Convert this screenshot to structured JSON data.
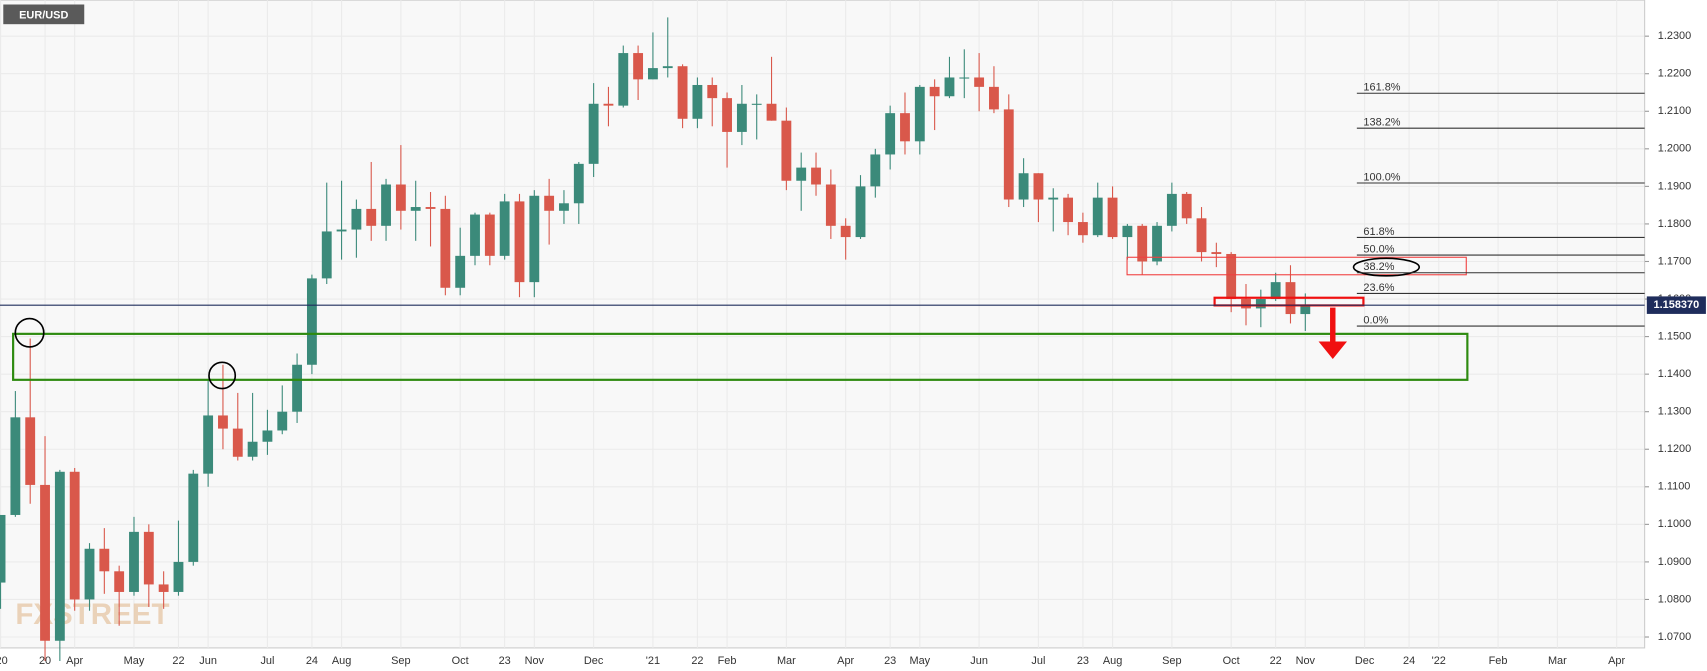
{
  "chart_data": {
    "type": "candlestick",
    "title": "EUR/USD",
    "watermark": "FXSTREET",
    "up_color": "#3b8a7a",
    "down_color": "#d9584b",
    "grid": true,
    "categories": [
      "'20",
      null,
      null,
      "20",
      null,
      "Apr",
      null,
      null,
      null,
      "May",
      null,
      null,
      "22",
      null,
      "Jun",
      null,
      null,
      null,
      "Jul",
      null,
      null,
      "24",
      null,
      "Aug",
      null,
      null,
      null,
      "Sep",
      null,
      null,
      null,
      "Oct",
      null,
      null,
      "23",
      null,
      "Nov",
      null,
      null,
      null,
      "Dec",
      null,
      null,
      null,
      "'21",
      null,
      null,
      "22",
      null,
      "Feb",
      null,
      null,
      null,
      "Mar",
      null,
      null,
      null,
      "Apr",
      null,
      null,
      "23",
      null,
      "May",
      null,
      null,
      null,
      "Jun",
      null,
      null,
      null,
      "Jul",
      null,
      null,
      "23",
      null,
      "Aug",
      null,
      null,
      null,
      "Sep",
      null,
      null,
      null,
      "Oct",
      null,
      null,
      "22",
      null,
      "Nov",
      null,
      null,
      null,
      "Dec",
      null,
      null,
      "24",
      null,
      "'22",
      null,
      null,
      null,
      "Feb",
      null,
      null,
      null,
      "Mar",
      null,
      null,
      null,
      "Apr",
      null
    ],
    "open": [
      1.0845,
      1.1025,
      1.1285,
      1.1105,
      1.069,
      1.114,
      1.08,
      1.0935,
      1.0875,
      1.082,
      1.098,
      1.084,
      1.082,
      1.09,
      1.1135,
      1.129,
      1.1255,
      1.118,
      1.122,
      1.125,
      1.13,
      1.1425,
      1.1655,
      1.178,
      1.1785,
      1.184,
      1.1795,
      1.1905,
      1.1835,
      1.1845,
      1.184,
      1.163,
      1.1715,
      1.1825,
      1.1715,
      1.186,
      1.1645,
      1.1875,
      1.1835,
      1.1855,
      1.196,
      1.212,
      1.2115,
      1.2255,
      1.2185,
      1.2215,
      1.222,
      1.208,
      1.217,
      1.2135,
      1.2045,
      1.212,
      1.212,
      1.2075,
      1.1915,
      1.195,
      1.1905,
      1.1795,
      1.1765,
      1.19,
      1.1985,
      1.2095,
      1.202,
      1.2165,
      1.214,
      1.219,
      1.219,
      1.2165,
      1.2105,
      1.1865,
      1.1935,
      1.1865,
      1.187,
      1.1805,
      1.177,
      1.187,
      1.1765,
      1.1795,
      1.17,
      1.1795,
      1.188,
      1.1815,
      1.1725,
      1.172,
      1.16,
      1.1575,
      1.16,
      1.1645,
      1.156,
      null,
      null,
      null,
      null,
      null,
      null,
      null,
      null,
      null,
      null,
      null,
      null,
      null,
      null,
      null,
      null,
      null,
      null,
      null,
      null,
      null,
      null
    ],
    "high": [
      1.1025,
      1.1355,
      1.1495,
      1.1235,
      1.1145,
      1.115,
      1.095,
      1.099,
      1.089,
      1.102,
      1.1,
      1.0875,
      1.101,
      1.1145,
      1.1385,
      1.1425,
      1.135,
      1.135,
      1.1305,
      1.137,
      1.1455,
      1.1665,
      1.191,
      1.1915,
      1.1865,
      1.1965,
      1.192,
      1.201,
      1.1915,
      1.1885,
      1.1875,
      1.179,
      1.183,
      1.183,
      1.188,
      1.188,
      1.189,
      1.192,
      1.189,
      1.1965,
      1.2175,
      1.2165,
      1.2275,
      1.2275,
      1.231,
      1.235,
      1.2225,
      1.219,
      1.219,
      1.215,
      1.217,
      1.2145,
      1.2245,
      1.211,
      1.199,
      1.199,
      1.1945,
      1.1815,
      1.193,
      1.2,
      1.2115,
      1.215,
      1.217,
      1.2185,
      1.2245,
      1.2265,
      1.2255,
      1.222,
      1.2145,
      1.1975,
      1.1935,
      1.1895,
      1.188,
      1.183,
      1.191,
      1.19,
      1.18,
      1.18,
      1.1805,
      1.191,
      1.1885,
      1.1845,
      1.175,
      1.1725,
      1.164,
      1.1625,
      1.167,
      1.169,
      1.1615,
      null,
      null,
      null,
      null,
      null,
      null,
      null,
      null,
      null,
      null,
      null,
      null,
      null,
      null,
      null,
      null,
      null,
      null,
      null,
      null,
      null,
      null
    ],
    "low": [
      1.0775,
      1.102,
      1.1055,
      1.0636,
      1.0636,
      1.077,
      1.077,
      1.0815,
      1.073,
      1.081,
      1.078,
      1.0775,
      1.081,
      1.089,
      1.11,
      1.12,
      1.117,
      1.117,
      1.1185,
      1.124,
      1.127,
      1.14,
      1.164,
      1.1705,
      1.171,
      1.1755,
      1.1755,
      1.1785,
      1.1755,
      1.174,
      1.161,
      1.161,
      1.169,
      1.169,
      1.1705,
      1.1605,
      1.1605,
      1.1745,
      1.18,
      1.18,
      1.1925,
      1.206,
      1.211,
      1.213,
      1.2185,
      1.219,
      1.2055,
      1.2055,
      1.206,
      1.195,
      1.201,
      1.2025,
      1.2075,
      1.189,
      1.1835,
      1.1875,
      1.176,
      1.1705,
      1.176,
      1.187,
      1.1945,
      1.1985,
      1.1985,
      1.205,
      1.2135,
      1.2135,
      1.21,
      1.2095,
      1.1845,
      1.1845,
      1.1805,
      1.178,
      1.177,
      1.175,
      1.1765,
      1.176,
      1.1705,
      1.1665,
      1.169,
      1.178,
      1.18,
      1.17,
      1.1685,
      1.1565,
      1.153,
      1.1525,
      1.1595,
      1.1535,
      1.1515,
      null,
      null,
      null,
      null,
      null,
      null,
      null,
      null,
      null,
      null,
      null,
      null,
      null,
      null,
      null,
      null,
      null,
      null,
      null,
      null,
      null,
      null
    ],
    "close": [
      1.1025,
      1.1285,
      1.1105,
      1.069,
      1.114,
      1.08,
      1.0935,
      1.0875,
      1.082,
      1.098,
      1.084,
      1.082,
      1.09,
      1.1135,
      1.129,
      1.1255,
      1.118,
      1.122,
      1.125,
      1.13,
      1.1425,
      1.1655,
      1.178,
      1.1785,
      1.184,
      1.1795,
      1.1905,
      1.1835,
      1.1845,
      1.184,
      1.163,
      1.1715,
      1.1825,
      1.1715,
      1.186,
      1.1645,
      1.1875,
      1.1835,
      1.1855,
      1.196,
      1.212,
      1.2115,
      1.2255,
      1.2185,
      1.2215,
      1.222,
      1.208,
      1.217,
      1.2135,
      1.2045,
      1.212,
      1.212,
      1.2075,
      1.1915,
      1.195,
      1.1905,
      1.1795,
      1.1765,
      1.19,
      1.1985,
      1.2095,
      1.202,
      1.2165,
      1.214,
      1.219,
      1.219,
      1.2165,
      1.2105,
      1.1865,
      1.1935,
      1.1865,
      1.187,
      1.1805,
      1.177,
      1.187,
      1.1765,
      1.1795,
      1.17,
      1.1795,
      1.188,
      1.1815,
      1.1725,
      1.172,
      1.16,
      1.1575,
      1.16,
      1.1645,
      1.156,
      1.1584,
      null,
      null,
      null,
      null,
      null,
      null,
      null,
      null,
      null,
      null,
      null,
      null,
      null,
      null,
      null,
      null,
      null,
      null,
      null,
      null,
      null,
      null
    ],
    "ylim": [
      1.0671,
      1.2396
    ],
    "yticks": [
      {
        "value": 1.07,
        "label": "1.0700"
      },
      {
        "value": 1.08,
        "label": "1.0800"
      },
      {
        "value": 1.09,
        "label": "1.0900"
      },
      {
        "value": 1.1,
        "label": "1.1000"
      },
      {
        "value": 1.11,
        "label": "1.1100"
      },
      {
        "value": 1.12,
        "label": "1.1200"
      },
      {
        "value": 1.13,
        "label": "1.1300"
      },
      {
        "value": 1.14,
        "label": "1.1400"
      },
      {
        "value": 1.15,
        "label": "1.1500"
      },
      {
        "value": 1.16,
        "label": "1.1600"
      },
      {
        "value": 1.17,
        "label": "1.1700"
      },
      {
        "value": 1.18,
        "label": "1.1800"
      },
      {
        "value": 1.19,
        "label": "1.1900"
      },
      {
        "value": 1.2,
        "label": "1.2000"
      },
      {
        "value": 1.21,
        "label": "1.2100"
      },
      {
        "value": 1.22,
        "label": "1.2200"
      },
      {
        "value": 1.23,
        "label": "1.2300"
      }
    ],
    "last_price": {
      "value": 1.15837,
      "label": "1.158370"
    },
    "fibonacci": [
      {
        "label": "161.8%",
        "price": 1.2148
      },
      {
        "label": "138.2%",
        "price": 1.2055
      },
      {
        "label": "100.0%",
        "price": 1.1909
      },
      {
        "label": "61.8%",
        "price": 1.1764
      },
      {
        "label": "50.0%",
        "price": 1.1717
      },
      {
        "label": "38.2%",
        "price": 1.167
      },
      {
        "label": "23.6%",
        "price": 1.1615
      },
      {
        "label": "0.0%",
        "price": 1.1528
      }
    ]
  }
}
